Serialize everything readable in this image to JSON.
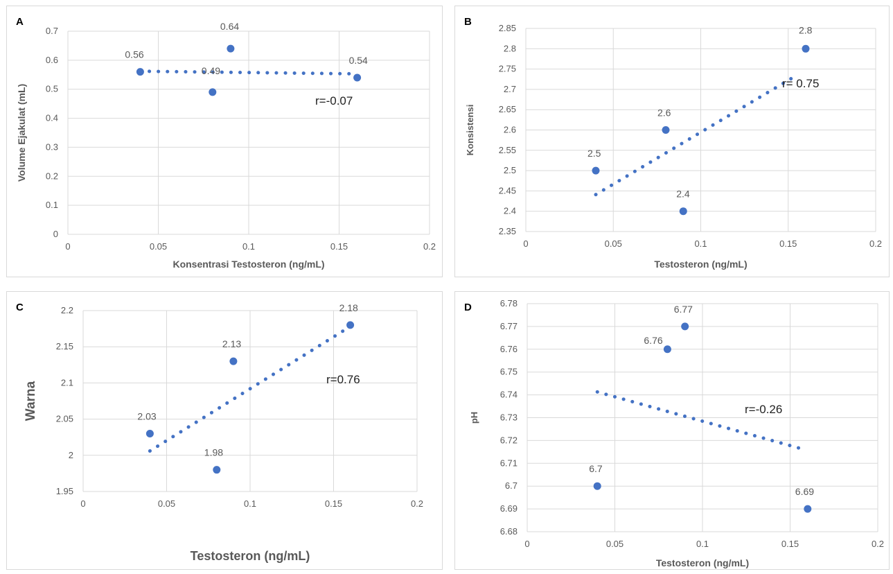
{
  "style": {
    "point_color": "#4472C4",
    "trend_color": "#4472C4",
    "grid_color": "#D9D9D9",
    "tick_color": "#595959"
  },
  "chart_data": [
    {
      "panel": "A",
      "type": "scatter",
      "xlabel": "Konsentrasi Testosteron (ng/mL)",
      "ylabel": "Volume Ejakulat (mL)",
      "xlim": [
        0,
        0.2
      ],
      "ylim": [
        0,
        0.7
      ],
      "x_ticks": [
        "0",
        "0.05",
        "0.1",
        "0.15",
        "0.2"
      ],
      "y_ticks": [
        "0",
        "0.1",
        "0.2",
        "0.3",
        "0.4",
        "0.5",
        "0.6",
        "0.7"
      ],
      "grid": "vertical and horizontal",
      "points": [
        {
          "x": 0.04,
          "y": 0.56,
          "label": "0.56"
        },
        {
          "x": 0.08,
          "y": 0.49,
          "label": "0.49"
        },
        {
          "x": 0.09,
          "y": 0.64,
          "label": "0.64"
        },
        {
          "x": 0.16,
          "y": 0.54,
          "label": "0.54"
        }
      ],
      "trendline": {
        "x": [
          0.04,
          0.16
        ],
        "y": [
          0.562,
          0.553
        ]
      },
      "annotation": "r=-0.07"
    },
    {
      "panel": "B",
      "type": "scatter",
      "xlabel": "Testosteron (ng/mL)",
      "ylabel": "Konsistensi",
      "xlim": [
        0,
        0.2
      ],
      "ylim": [
        2.35,
        2.85
      ],
      "x_ticks": [
        "0",
        "0.05",
        "0.1",
        "0.15",
        "0.2"
      ],
      "y_ticks": [
        "2.35",
        "2.4",
        "2.45",
        "2.5",
        "2.55",
        "2.6",
        "2.65",
        "2.7",
        "2.75",
        "2.8",
        "2.85"
      ],
      "grid": "vertical and horizontal",
      "points": [
        {
          "x": 0.04,
          "y": 2.5,
          "label": "2.5"
        },
        {
          "x": 0.08,
          "y": 2.6,
          "label": "2.6"
        },
        {
          "x": 0.09,
          "y": 2.4,
          "label": "2.4"
        },
        {
          "x": 0.16,
          "y": 2.8,
          "label": "2.8"
        }
      ],
      "trendline": {
        "x": [
          0.04,
          0.155
        ],
        "y": [
          2.441,
          2.735
        ]
      },
      "annotation": "r= 0.75"
    },
    {
      "panel": "C",
      "type": "scatter",
      "xlabel": "Testosteron (ng/mL)",
      "ylabel": "Warna",
      "xlim": [
        0,
        0.2
      ],
      "ylim": [
        1.95,
        2.2
      ],
      "x_ticks": [
        "0",
        "0.05",
        "0.1",
        "0.15",
        "0.2"
      ],
      "y_ticks": [
        "1.95",
        "2",
        "2.05",
        "2.1",
        "2.15",
        "2.2"
      ],
      "grid": "vertical and horizontal",
      "points": [
        {
          "x": 0.04,
          "y": 2.03,
          "label": "2.03"
        },
        {
          "x": 0.08,
          "y": 1.98,
          "label": "1.98"
        },
        {
          "x": 0.09,
          "y": 2.13,
          "label": "2.13"
        },
        {
          "x": 0.16,
          "y": 2.18,
          "label": "2.18"
        }
      ],
      "trendline": {
        "x": [
          0.04,
          0.16
        ],
        "y": [
          2.006,
          2.178
        ]
      },
      "annotation": "r=0.76"
    },
    {
      "panel": "D",
      "type": "scatter",
      "xlabel": "Testosteron (ng/mL)",
      "ylabel": "pH",
      "xlim": [
        0,
        0.2
      ],
      "ylim": [
        6.68,
        6.78
      ],
      "x_ticks": [
        "0",
        "0.05",
        "0.1",
        "0.15",
        "0.2"
      ],
      "y_ticks": [
        "6.68",
        "6.69",
        "6.7",
        "6.71",
        "6.72",
        "6.73",
        "6.74",
        "6.75",
        "6.76",
        "6.77",
        "6.78"
      ],
      "grid": "vertical and horizontal",
      "points": [
        {
          "x": 0.04,
          "y": 6.7,
          "label": "6.7"
        },
        {
          "x": 0.08,
          "y": 6.76,
          "label": "6.76"
        },
        {
          "x": 0.09,
          "y": 6.77,
          "label": "6.77"
        },
        {
          "x": 0.16,
          "y": 6.69,
          "label": "6.69"
        }
      ],
      "trendline": {
        "x": [
          0.04,
          0.155
        ],
        "y": [
          6.7413,
          6.7167
        ]
      },
      "annotation": "r=-0.26"
    }
  ]
}
